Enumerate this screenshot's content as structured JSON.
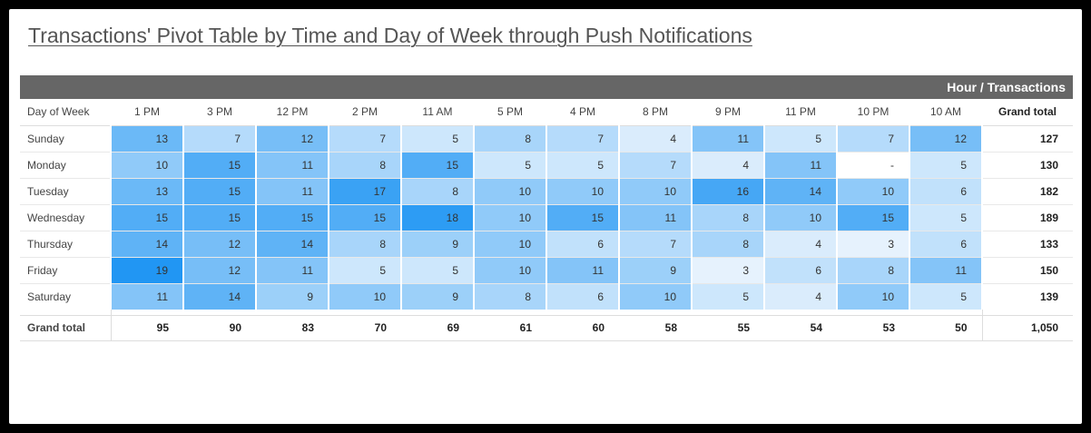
{
  "title": "Transactions' Pivot Table by Time and Day of Week through Push Notifications",
  "chart_data": {
    "type": "heatmap",
    "header_label": "Hour / Transactions",
    "row_header": "Day of Week",
    "columns": [
      "1 PM",
      "3 PM",
      "12 PM",
      "2 PM",
      "11 AM",
      "5 PM",
      "4 PM",
      "8 PM",
      "9 PM",
      "11 PM",
      "10 PM",
      "10 AM"
    ],
    "total_label": "Grand total",
    "rows": [
      {
        "day": "Sunday",
        "values": [
          13,
          7,
          12,
          7,
          5,
          8,
          7,
          4,
          11,
          5,
          7,
          12
        ],
        "total": "127"
      },
      {
        "day": "Monday",
        "values": [
          10,
          15,
          11,
          8,
          15,
          5,
          5,
          7,
          4,
          11,
          null,
          5
        ],
        "total": "130"
      },
      {
        "day": "Tuesday",
        "values": [
          13,
          15,
          11,
          17,
          8,
          10,
          10,
          10,
          16,
          14,
          10,
          6
        ],
        "total": "182"
      },
      {
        "day": "Wednesday",
        "values": [
          15,
          15,
          15,
          15,
          18,
          10,
          15,
          11,
          8,
          10,
          15,
          5
        ],
        "total": "189"
      },
      {
        "day": "Thursday",
        "values": [
          14,
          12,
          14,
          8,
          9,
          10,
          6,
          7,
          8,
          4,
          3,
          6
        ],
        "total": "133"
      },
      {
        "day": "Friday",
        "values": [
          19,
          12,
          11,
          5,
          5,
          10,
          11,
          9,
          3,
          6,
          8,
          11
        ],
        "total": "150"
      },
      {
        "day": "Saturday",
        "values": [
          11,
          14,
          9,
          10,
          9,
          8,
          6,
          10,
          5,
          4,
          10,
          5
        ],
        "total": "139"
      }
    ],
    "empty_value": "-",
    "column_totals": [
      "95",
      "90",
      "83",
      "70",
      "69",
      "61",
      "60",
      "58",
      "55",
      "54",
      "53",
      "50"
    ],
    "grand_total": "1,050",
    "color_scale": {
      "low": "#e6f2fd",
      "high": "#2196f3",
      "min": 3,
      "max": 19
    }
  }
}
